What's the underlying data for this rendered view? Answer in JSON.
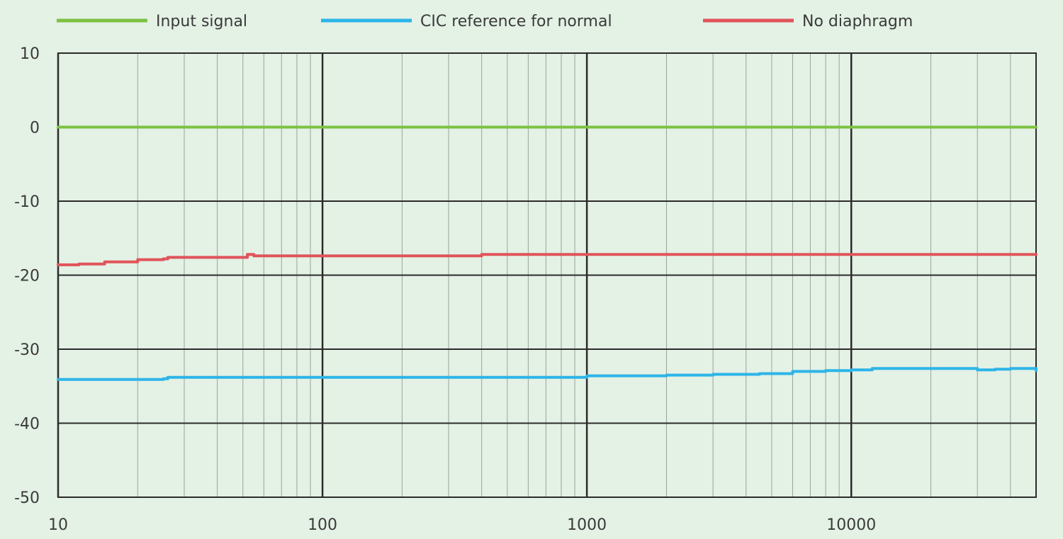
{
  "chart_data": {
    "type": "line",
    "x_scale": "log",
    "xlim": [
      10,
      50000
    ],
    "ylim": [
      -50,
      10
    ],
    "x_ticks": [
      10,
      100,
      1000,
      10000
    ],
    "x_tick_labels": [
      "10",
      "100",
      "1000",
      "10000"
    ],
    "y_ticks": [
      10,
      0,
      -10,
      -20,
      -30,
      -40,
      -50
    ],
    "y_tick_labels": [
      "10",
      "0",
      "-10",
      "-20",
      "-30",
      "-40",
      "-50"
    ],
    "grid": true,
    "legend_position": "top",
    "series": [
      {
        "name": "Input signal",
        "color": "#7cc242",
        "points": [
          [
            10,
            0
          ],
          [
            50000,
            0
          ]
        ]
      },
      {
        "name": "CIC reference for normal",
        "color": "#2cb5e8",
        "points": [
          [
            10,
            -34.1
          ],
          [
            20,
            -34.1
          ],
          [
            25,
            -34.0
          ],
          [
            26,
            -33.8
          ],
          [
            100,
            -33.8
          ],
          [
            800,
            -33.8
          ],
          [
            1000,
            -33.6
          ],
          [
            2000,
            -33.5
          ],
          [
            3000,
            -33.4
          ],
          [
            4500,
            -33.3
          ],
          [
            6000,
            -33.0
          ],
          [
            8000,
            -32.9
          ],
          [
            10000,
            -32.8
          ],
          [
            12000,
            -32.6
          ],
          [
            20000,
            -32.6
          ],
          [
            30000,
            -32.8
          ],
          [
            35000,
            -32.7
          ],
          [
            40000,
            -32.6
          ],
          [
            45000,
            -32.6
          ],
          [
            50000,
            -32.9
          ]
        ]
      },
      {
        "name": "No diaphragm",
        "color": "#e0545a",
        "points": [
          [
            10,
            -18.6
          ],
          [
            12,
            -18.5
          ],
          [
            15,
            -18.2
          ],
          [
            20,
            -17.9
          ],
          [
            25,
            -17.8
          ],
          [
            26,
            -17.6
          ],
          [
            50,
            -17.6
          ],
          [
            52,
            -17.2
          ],
          [
            55,
            -17.4
          ],
          [
            100,
            -17.4
          ],
          [
            380,
            -17.4
          ],
          [
            400,
            -17.2
          ],
          [
            1000,
            -17.2
          ],
          [
            10000,
            -17.2
          ],
          [
            50000,
            -17.2
          ]
        ]
      }
    ]
  }
}
